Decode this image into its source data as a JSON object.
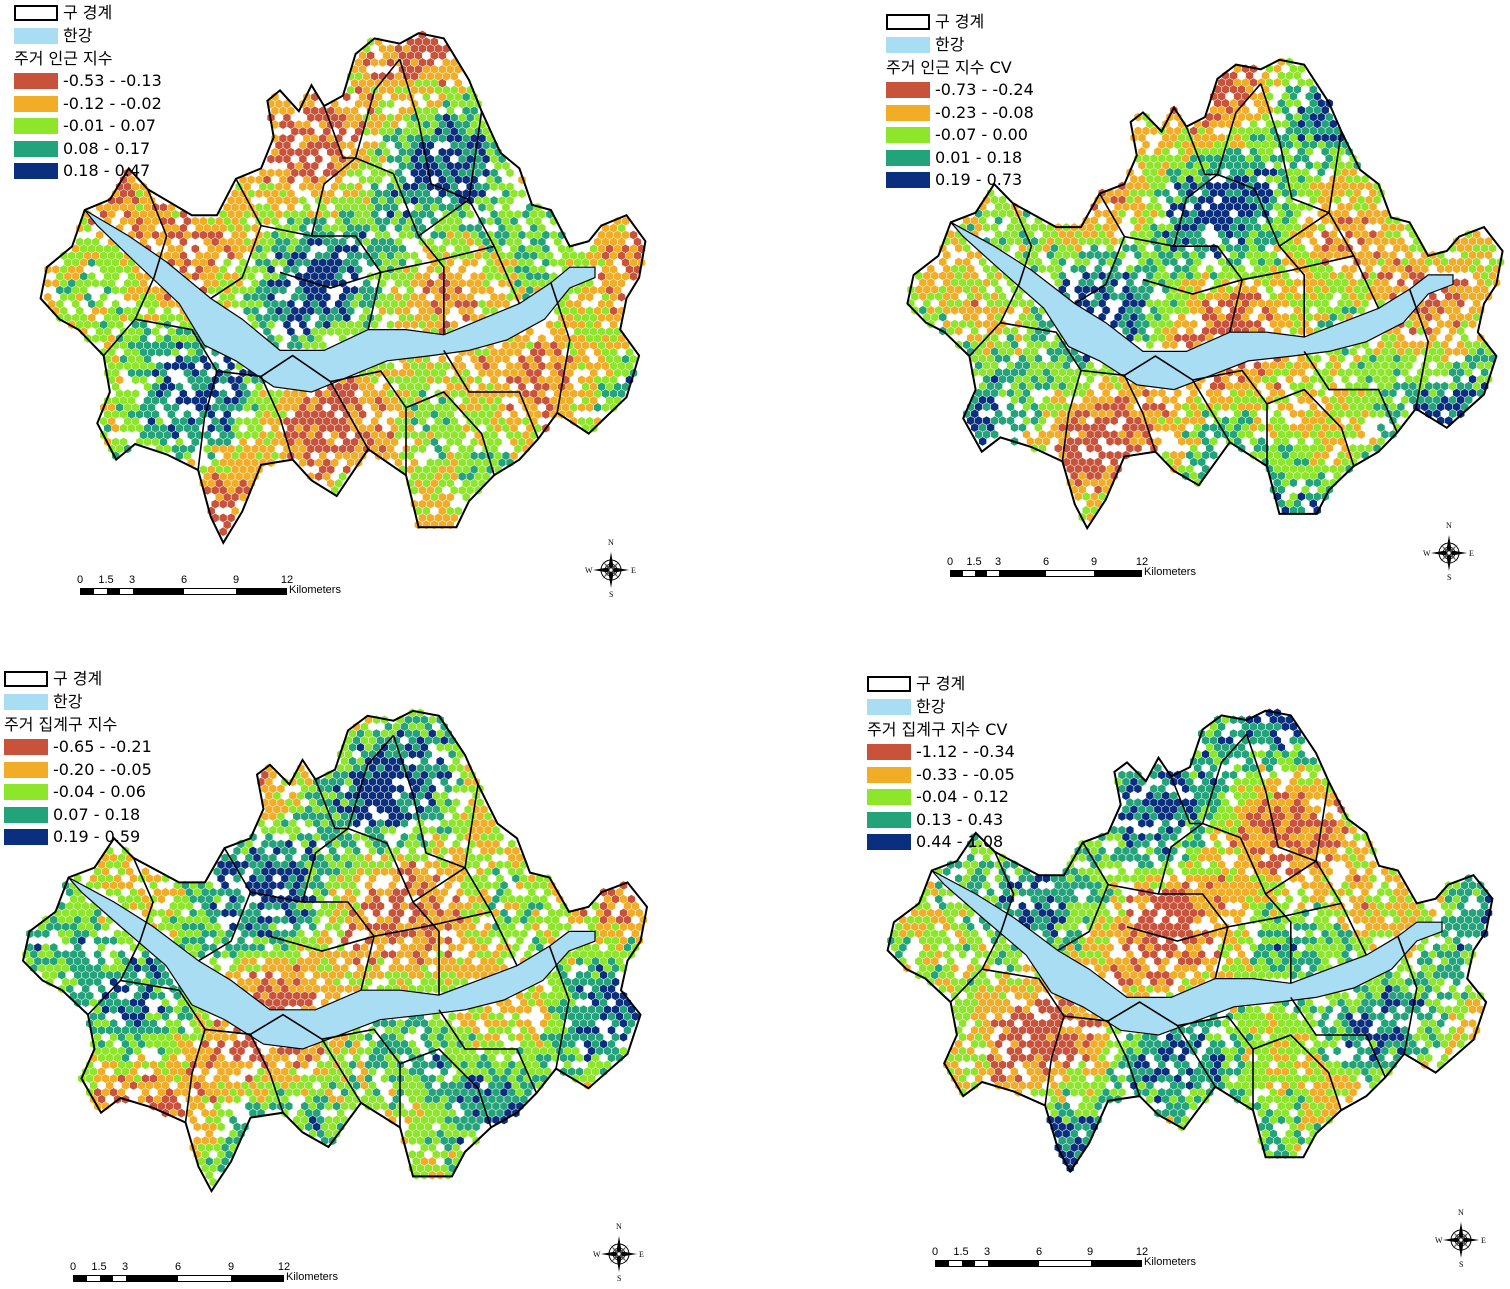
{
  "colors": {
    "river": "#a9ddf3",
    "boundary": "#000000",
    "class_colors": [
      "#c9523b",
      "#f2ad27",
      "#8ee62a",
      "#22a37a",
      "#0a2f7e"
    ]
  },
  "legend_common": {
    "boundary_label": "구 경계",
    "river_label": "한강"
  },
  "panels": [
    {
      "title": "주거 인근 지수",
      "classes": [
        "-0.53 - -0.13",
        "-0.12 - -0.02",
        "-0.01 - 0.07",
        "0.08 - 0.17",
        "0.18 - 0.47"
      ]
    },
    {
      "title": "주거 인근 지수 CV",
      "classes": [
        "-0.73 - -0.24",
        "-0.23 - -0.08",
        "-0.07 - 0.00",
        "0.01 - 0.18",
        "0.19 - 0.73"
      ]
    },
    {
      "title": "주거 집계구 지수",
      "classes": [
        "-0.65 - -0.21",
        "-0.20 - -0.05",
        "-0.04 - 0.06",
        "0.07 - 0.18",
        "0.19 - 0.59"
      ]
    },
    {
      "title": "주거 집계구 지수 CV",
      "classes": [
        "-1.12 - -0.34",
        "-0.33 - -0.05",
        "-0.04 - 0.12",
        "0.13 - 0.43",
        "0.44 - 1.08"
      ]
    }
  ],
  "scale": {
    "ticks": [
      "0",
      "1.5",
      "3",
      "6",
      "9",
      "12"
    ],
    "unit": "Kilometers"
  },
  "compass": {
    "n": "N",
    "s": "S",
    "e": "E",
    "w": "W"
  }
}
